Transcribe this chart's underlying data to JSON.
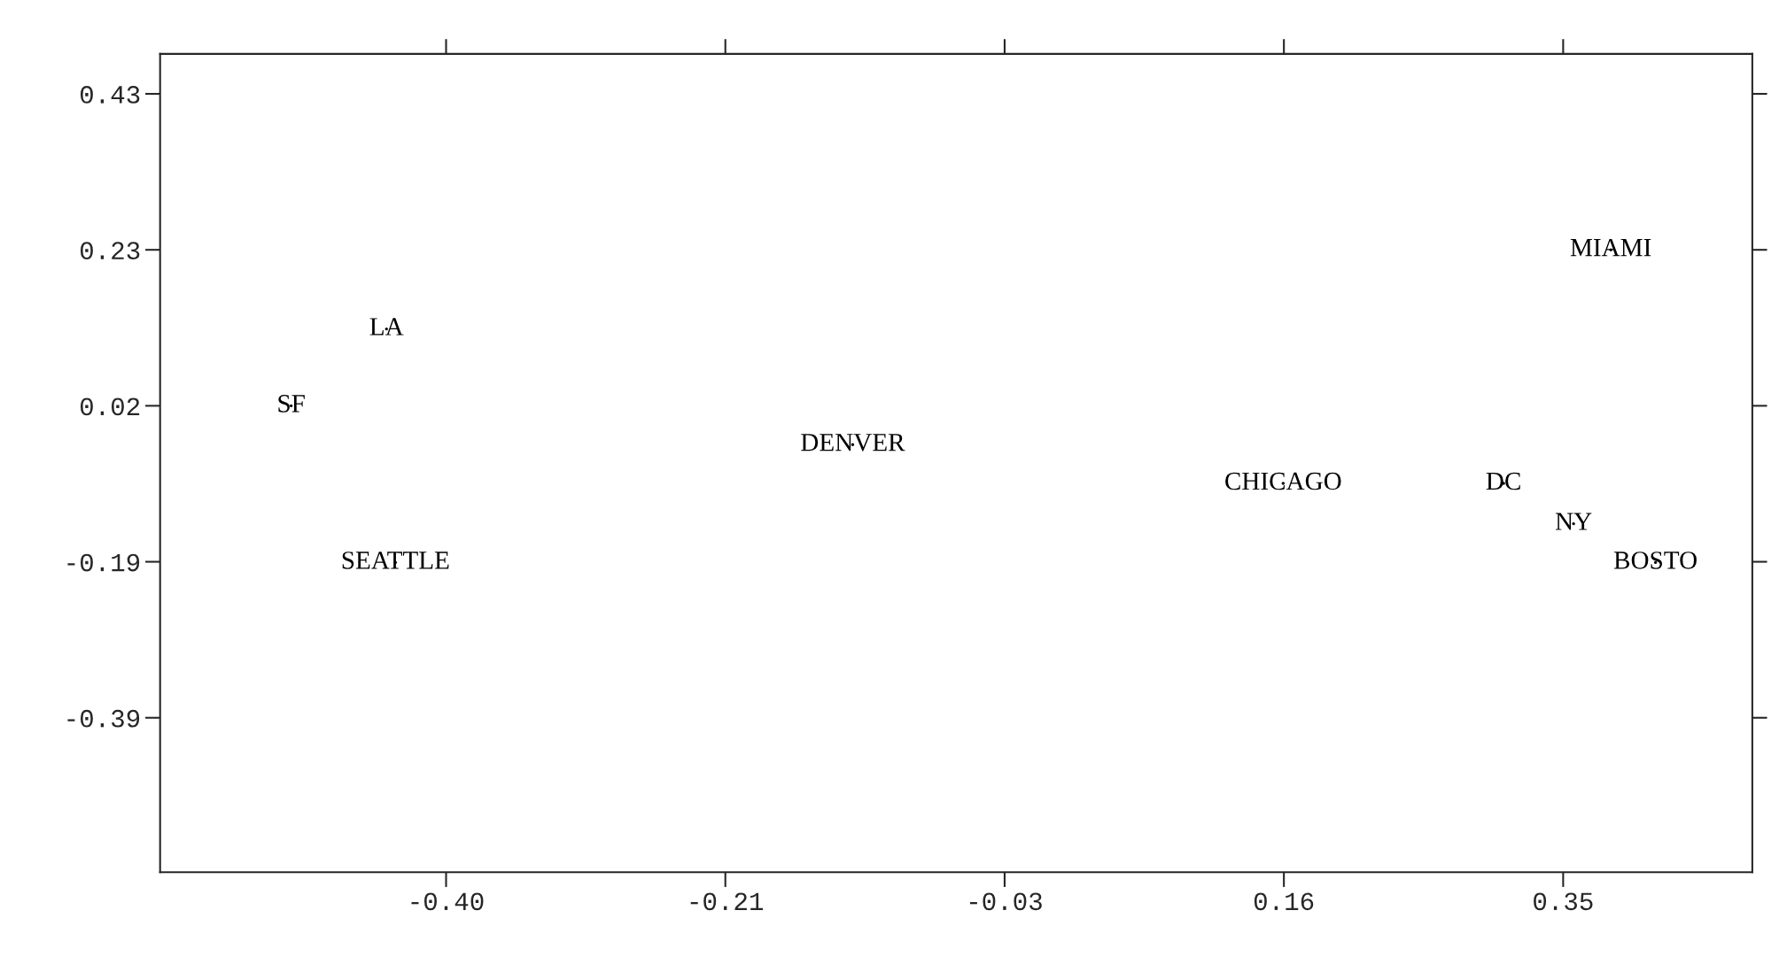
{
  "chart_data": {
    "type": "scatter",
    "marker": "none",
    "grid": false,
    "x": [
      -0.44,
      -0.504,
      -0.434,
      -0.127,
      0.162,
      0.31,
      0.357,
      0.382,
      0.412
    ],
    "values": [
      0.121,
      0.02,
      -0.186,
      -0.031,
      -0.082,
      -0.082,
      -0.135,
      0.225,
      -0.186
    ],
    "value_labels": [
      "LA",
      "SF",
      "SEATTLE",
      "DENVER",
      "CHICAGO",
      "DC",
      "NY",
      "MIAMI",
      "BOSTO"
    ],
    "color": "#000000",
    "xlim": [
      -0.592,
      0.477
    ],
    "ylim": [
      -0.593,
      0.4825
    ],
    "xticks": [
      {
        "value": -0.4,
        "label": "-0.40"
      },
      {
        "value": -0.2125,
        "label": "-0.21"
      },
      {
        "value": -0.025,
        "label": "-0.03"
      },
      {
        "value": 0.1625,
        "label": "0.16"
      },
      {
        "value": 0.35,
        "label": "0.35"
      }
    ],
    "yticks": [
      0.43,
      {
        "value": 0.225,
        "label": "0.23"
      },
      0.02,
      {
        "value": -0.185,
        "label": "-0.19"
      },
      -0.39
    ]
  }
}
